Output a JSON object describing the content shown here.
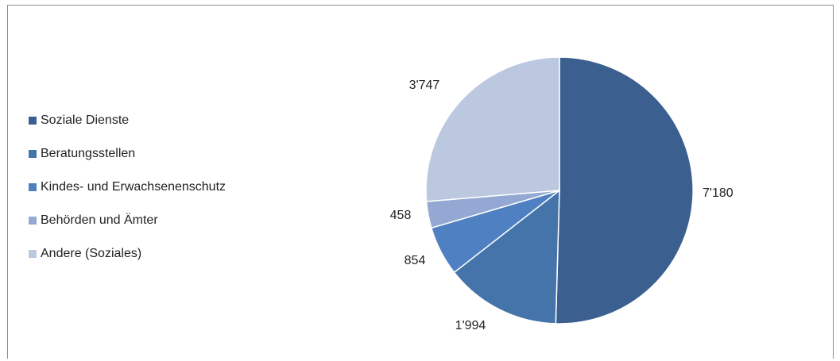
{
  "chart_data": {
    "type": "pie",
    "categories": [
      "Soziale Dienste",
      "Beratungsstellen",
      "Kindes- und Erwachsenenschutz",
      "Behörden und Ämter",
      "Andere (Soziales)"
    ],
    "values": [
      7180,
      1994,
      854,
      458,
      3747
    ],
    "value_labels": [
      "7'180",
      "1'994",
      "854",
      "458",
      "3'747"
    ],
    "colors": [
      "#3b5f8f",
      "#4574aa",
      "#4f81c2",
      "#93a9d3",
      "#bcc8e0"
    ],
    "legend_position": "left",
    "start_angle_deg": 0,
    "direction": "clockwise"
  }
}
